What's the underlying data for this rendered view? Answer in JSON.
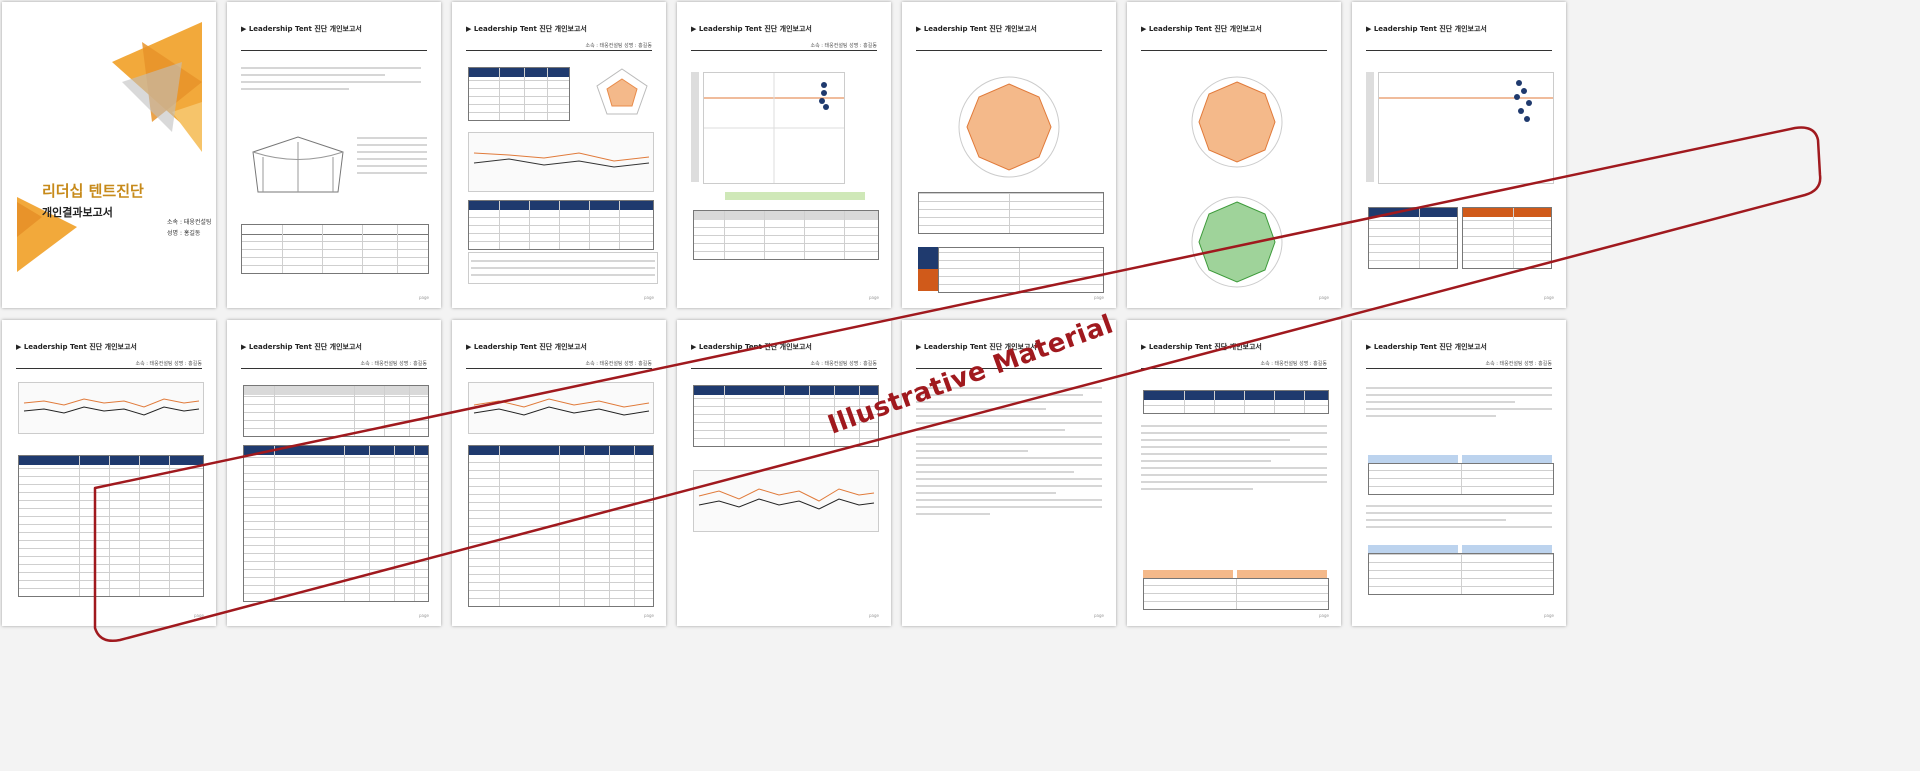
{
  "cover": {
    "title": "리더십 텐트진단",
    "subtitle": "개인결과보고서",
    "affiliation_line": "소속 : 태웅컨설팅",
    "name_line": "성명 : 홍길동"
  },
  "report_header": "Leadership Tent 진단 개인보고서",
  "report_meta": "소속 : 태웅컨설팅     성명 : 홍길동",
  "watermark": "Illustrative Material",
  "accent_colors": {
    "brand": "#c78a1a",
    "header": "#1f3a6e",
    "watermark": "#a0191e",
    "radar_orange": "#f4b98a",
    "radar_green": "#9fd39a"
  },
  "page_label": "page"
}
